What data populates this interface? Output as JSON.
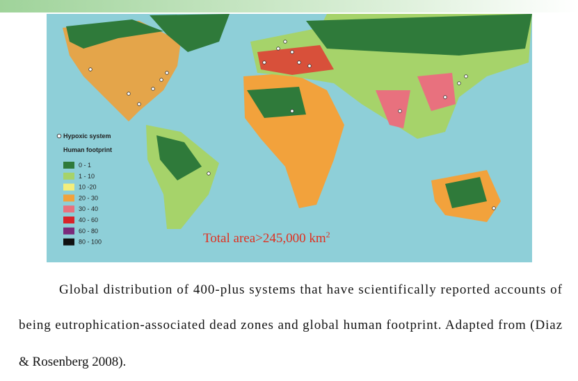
{
  "map": {
    "legend": {
      "marker_label": "Hypoxic system",
      "title": "Human footprint",
      "items": [
        {
          "label": "0 - 1",
          "color": "#2f7a3a"
        },
        {
          "label": "1 - 10",
          "color": "#a6d36a"
        },
        {
          "label": "10 -20",
          "color": "#f3ee7c"
        },
        {
          "label": "20 - 30",
          "color": "#f2a23c"
        },
        {
          "label": "30 - 40",
          "color": "#e8717e"
        },
        {
          "label": "40 - 60",
          "color": "#d8232a"
        },
        {
          "label": "60 - 80",
          "color": "#7b2a7a"
        },
        {
          "label": "80 - 100",
          "color": "#111111"
        }
      ]
    },
    "annotation": {
      "text": "Total area>245,000 km",
      "superscript": "2"
    }
  },
  "caption": {
    "lines": [
      "Global distribution of 400-plus systems that have scientifically reported accounts of",
      "being eutrophication-associated dead zones and global human footprint. Adapted from (Diaz",
      "& Rosenberg 2008)."
    ]
  }
}
